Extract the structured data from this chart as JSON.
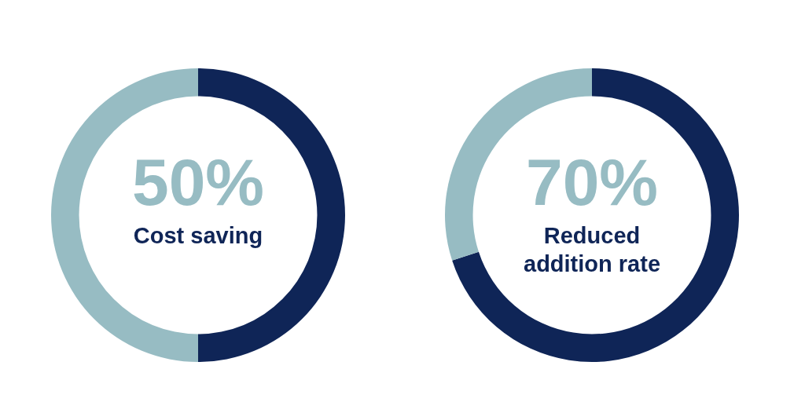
{
  "chart_data": [
    {
      "type": "donut",
      "title": "Cost saving",
      "categories": [
        null,
        null
      ],
      "values": [
        50,
        50
      ],
      "colors": [
        "#0f2557",
        "#97bcc3"
      ],
      "value_labels": [
        "50%",
        null
      ],
      "legend": false
    },
    {
      "type": "donut",
      "title": "Reduced addition rate",
      "categories": [
        null,
        null
      ],
      "values": [
        70,
        30
      ],
      "colors": [
        "#0f2557",
        "#97bcc3"
      ],
      "value_labels": [
        "70%",
        null
      ],
      "legend": false
    }
  ]
}
